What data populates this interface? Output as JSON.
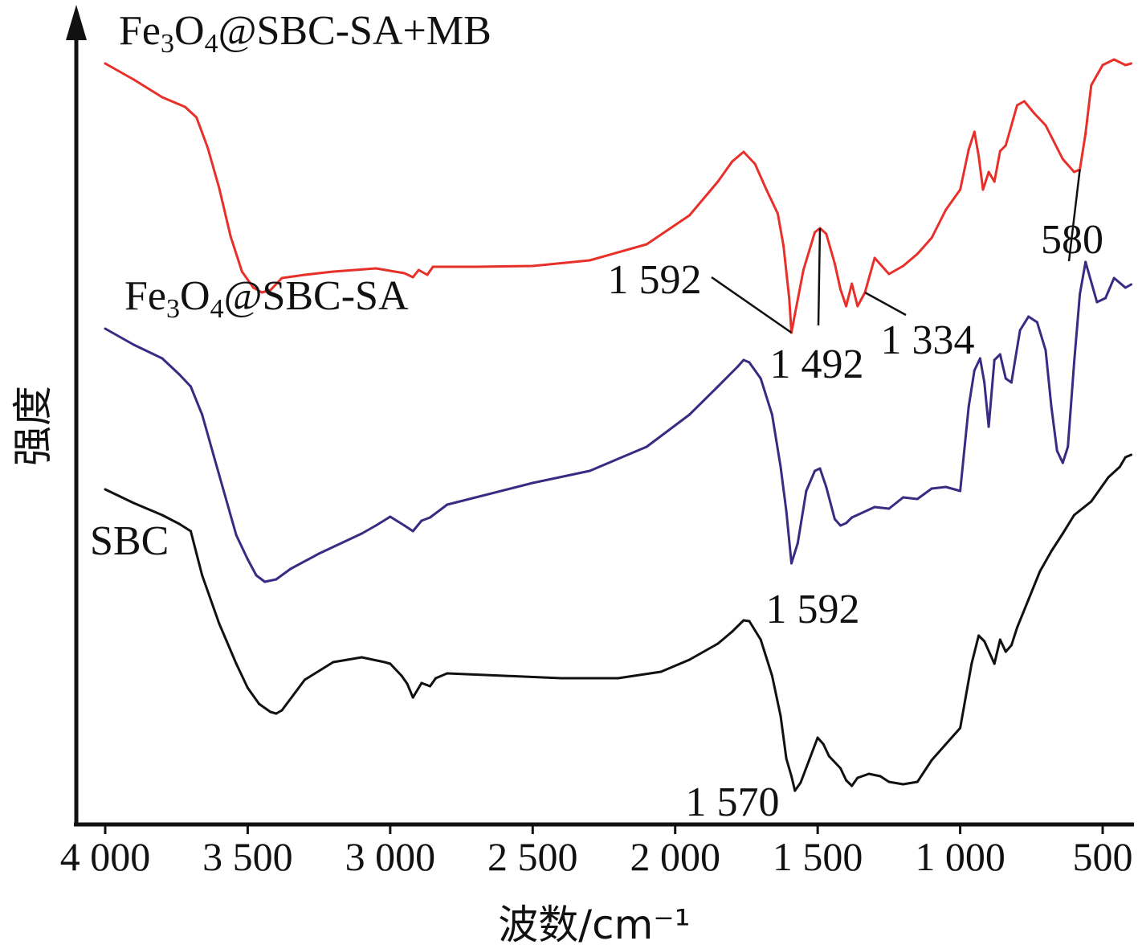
{
  "chart_data": {
    "type": "line",
    "xlabel": "波数/cm⁻¹",
    "ylabel": "强度",
    "xlim": [
      4000,
      400
    ],
    "x_reversed": true,
    "ticks": [
      {
        "value": 4000,
        "label": "4 000"
      },
      {
        "value": 3500,
        "label": "3 500"
      },
      {
        "value": 3000,
        "label": "3 000"
      },
      {
        "value": 2500,
        "label": "2 500"
      },
      {
        "value": 2000,
        "label": "2 000"
      },
      {
        "value": 1500,
        "label": "1 500"
      },
      {
        "value": 1000,
        "label": "1 000"
      },
      {
        "value": 500,
        "label": "500"
      }
    ],
    "grid": false,
    "series": [
      {
        "name": "Fe3O4@SBC-SA+MB",
        "label_parts": [
          [
            "Fe",
            ""
          ],
          [
            "3",
            "sub"
          ],
          [
            "O",
            ""
          ],
          [
            "4",
            "sub"
          ],
          [
            "@SBC-SA+MB",
            ""
          ]
        ],
        "color": "#e8302a",
        "points": [
          [
            4000,
            947
          ],
          [
            3900,
            927
          ],
          [
            3800,
            905
          ],
          [
            3720,
            893
          ],
          [
            3680,
            880
          ],
          [
            3640,
            842
          ],
          [
            3600,
            792
          ],
          [
            3560,
            732
          ],
          [
            3520,
            688
          ],
          [
            3480,
            668
          ],
          [
            3450,
            662
          ],
          [
            3420,
            665
          ],
          [
            3380,
            680
          ],
          [
            3300,
            684
          ],
          [
            3200,
            688
          ],
          [
            3050,
            692
          ],
          [
            2950,
            686
          ],
          [
            2920,
            681
          ],
          [
            2900,
            690
          ],
          [
            2870,
            684
          ],
          [
            2850,
            694
          ],
          [
            2700,
            694
          ],
          [
            2500,
            695
          ],
          [
            2300,
            702
          ],
          [
            2100,
            722
          ],
          [
            1950,
            758
          ],
          [
            1850,
            800
          ],
          [
            1800,
            825
          ],
          [
            1760,
            837
          ],
          [
            1720,
            822
          ],
          [
            1680,
            790
          ],
          [
            1640,
            760
          ],
          [
            1620,
            720
          ],
          [
            1600,
            655
          ],
          [
            1592,
            612
          ],
          [
            1580,
            635
          ],
          [
            1550,
            690
          ],
          [
            1510,
            737
          ],
          [
            1492,
            742
          ],
          [
            1470,
            735
          ],
          [
            1440,
            698
          ],
          [
            1420,
            666
          ],
          [
            1400,
            645
          ],
          [
            1380,
            673
          ],
          [
            1360,
            645
          ],
          [
            1334,
            662
          ],
          [
            1300,
            705
          ],
          [
            1250,
            685
          ],
          [
            1200,
            695
          ],
          [
            1150,
            710
          ],
          [
            1100,
            730
          ],
          [
            1050,
            765
          ],
          [
            1000,
            790
          ],
          [
            970,
            840
          ],
          [
            950,
            862
          ],
          [
            935,
            832
          ],
          [
            920,
            790
          ],
          [
            900,
            812
          ],
          [
            880,
            800
          ],
          [
            860,
            838
          ],
          [
            840,
            845
          ],
          [
            820,
            870
          ],
          [
            800,
            895
          ],
          [
            775,
            900
          ],
          [
            740,
            885
          ],
          [
            700,
            870
          ],
          [
            640,
            828
          ],
          [
            600,
            812
          ],
          [
            580,
            815
          ],
          [
            560,
            860
          ],
          [
            540,
            920
          ],
          [
            500,
            945
          ],
          [
            460,
            952
          ],
          [
            420,
            945
          ],
          [
            400,
            947
          ]
        ]
      },
      {
        "name": "Fe3O4@SBC-SA",
        "label_parts": [
          [
            "Fe",
            ""
          ],
          [
            "3",
            "sub"
          ],
          [
            "O",
            ""
          ],
          [
            "4",
            "sub"
          ],
          [
            "@SBC-SA",
            ""
          ]
        ],
        "color": "#3a2a82",
        "points": [
          [
            4000,
            617
          ],
          [
            3900,
            597
          ],
          [
            3800,
            580
          ],
          [
            3740,
            560
          ],
          [
            3700,
            545
          ],
          [
            3660,
            510
          ],
          [
            3620,
            460
          ],
          [
            3580,
            410
          ],
          [
            3540,
            360
          ],
          [
            3500,
            330
          ],
          [
            3470,
            310
          ],
          [
            3440,
            302
          ],
          [
            3400,
            305
          ],
          [
            3350,
            318
          ],
          [
            3250,
            337
          ],
          [
            3100,
            362
          ],
          [
            3050,
            372
          ],
          [
            3000,
            383
          ],
          [
            2950,
            372
          ],
          [
            2920,
            365
          ],
          [
            2890,
            378
          ],
          [
            2860,
            382
          ],
          [
            2800,
            398
          ],
          [
            2500,
            425
          ],
          [
            2300,
            440
          ],
          [
            2100,
            470
          ],
          [
            1950,
            510
          ],
          [
            1850,
            545
          ],
          [
            1780,
            570
          ],
          [
            1760,
            578
          ],
          [
            1740,
            575
          ],
          [
            1700,
            555
          ],
          [
            1660,
            510
          ],
          [
            1630,
            445
          ],
          [
            1610,
            390
          ],
          [
            1592,
            325
          ],
          [
            1570,
            350
          ],
          [
            1540,
            415
          ],
          [
            1510,
            440
          ],
          [
            1492,
            443
          ],
          [
            1470,
            420
          ],
          [
            1440,
            380
          ],
          [
            1420,
            372
          ],
          [
            1400,
            375
          ],
          [
            1380,
            382
          ],
          [
            1300,
            395
          ],
          [
            1250,
            393
          ],
          [
            1200,
            407
          ],
          [
            1150,
            405
          ],
          [
            1100,
            418
          ],
          [
            1050,
            420
          ],
          [
            1000,
            415
          ],
          [
            970,
            520
          ],
          [
            950,
            565
          ],
          [
            930,
            580
          ],
          [
            915,
            550
          ],
          [
            900,
            495
          ],
          [
            880,
            578
          ],
          [
            860,
            585
          ],
          [
            840,
            555
          ],
          [
            820,
            550
          ],
          [
            790,
            615
          ],
          [
            760,
            632
          ],
          [
            730,
            625
          ],
          [
            700,
            590
          ],
          [
            680,
            520
          ],
          [
            660,
            465
          ],
          [
            640,
            450
          ],
          [
            622,
            470
          ],
          [
            600,
            575
          ],
          [
            580,
            660
          ],
          [
            560,
            700
          ],
          [
            520,
            650
          ],
          [
            490,
            655
          ],
          [
            460,
            680
          ],
          [
            420,
            668
          ],
          [
            400,
            672
          ]
        ]
      },
      {
        "name": "SBC",
        "label_parts": [
          [
            "SBC",
            ""
          ]
        ],
        "color": "#111111",
        "points": [
          [
            4000,
            417
          ],
          [
            3900,
            400
          ],
          [
            3800,
            385
          ],
          [
            3740,
            374
          ],
          [
            3700,
            365
          ],
          [
            3660,
            310
          ],
          [
            3600,
            250
          ],
          [
            3540,
            200
          ],
          [
            3500,
            170
          ],
          [
            3460,
            150
          ],
          [
            3420,
            140
          ],
          [
            3400,
            138
          ],
          [
            3380,
            142
          ],
          [
            3300,
            180
          ],
          [
            3200,
            202
          ],
          [
            3100,
            208
          ],
          [
            3020,
            202
          ],
          [
            3000,
            200
          ],
          [
            2960,
            185
          ],
          [
            2940,
            175
          ],
          [
            2920,
            158
          ],
          [
            2890,
            176
          ],
          [
            2860,
            172
          ],
          [
            2840,
            182
          ],
          [
            2800,
            188
          ],
          [
            2600,
            185
          ],
          [
            2400,
            182
          ],
          [
            2200,
            182
          ],
          [
            2050,
            190
          ],
          [
            1950,
            205
          ],
          [
            1850,
            225
          ],
          [
            1800,
            240
          ],
          [
            1760,
            254
          ],
          [
            1740,
            253
          ],
          [
            1700,
            230
          ],
          [
            1660,
            185
          ],
          [
            1630,
            135
          ],
          [
            1610,
            82
          ],
          [
            1592,
            60
          ],
          [
            1580,
            42
          ],
          [
            1560,
            52
          ],
          [
            1530,
            80
          ],
          [
            1500,
            108
          ],
          [
            1480,
            100
          ],
          [
            1460,
            85
          ],
          [
            1420,
            70
          ],
          [
            1400,
            55
          ],
          [
            1380,
            48
          ],
          [
            1360,
            58
          ],
          [
            1320,
            63
          ],
          [
            1280,
            60
          ],
          [
            1250,
            53
          ],
          [
            1200,
            50
          ],
          [
            1150,
            53
          ],
          [
            1100,
            80
          ],
          [
            1050,
            100
          ],
          [
            1000,
            120
          ],
          [
            960,
            200
          ],
          [
            935,
            235
          ],
          [
            915,
            228
          ],
          [
            880,
            200
          ],
          [
            860,
            230
          ],
          [
            840,
            215
          ],
          [
            820,
            223
          ],
          [
            800,
            245
          ],
          [
            760,
            280
          ],
          [
            720,
            315
          ],
          [
            680,
            340
          ],
          [
            640,
            362
          ],
          [
            600,
            385
          ],
          [
            540,
            402
          ],
          [
            480,
            432
          ],
          [
            440,
            445
          ],
          [
            420,
            457
          ],
          [
            400,
            460
          ]
        ]
      }
    ],
    "annotations": [
      {
        "series": 0,
        "x": 1592,
        "label": "1 592"
      },
      {
        "series": 0,
        "x": 1492,
        "label": "1 492"
      },
      {
        "series": 0,
        "x": 1334,
        "label": "1 334"
      },
      {
        "series": 0,
        "x": 580,
        "label": "580"
      },
      {
        "series": 1,
        "x": 1592,
        "label": "1 592"
      },
      {
        "series": 2,
        "x": 1570,
        "label": "1 570"
      }
    ]
  }
}
